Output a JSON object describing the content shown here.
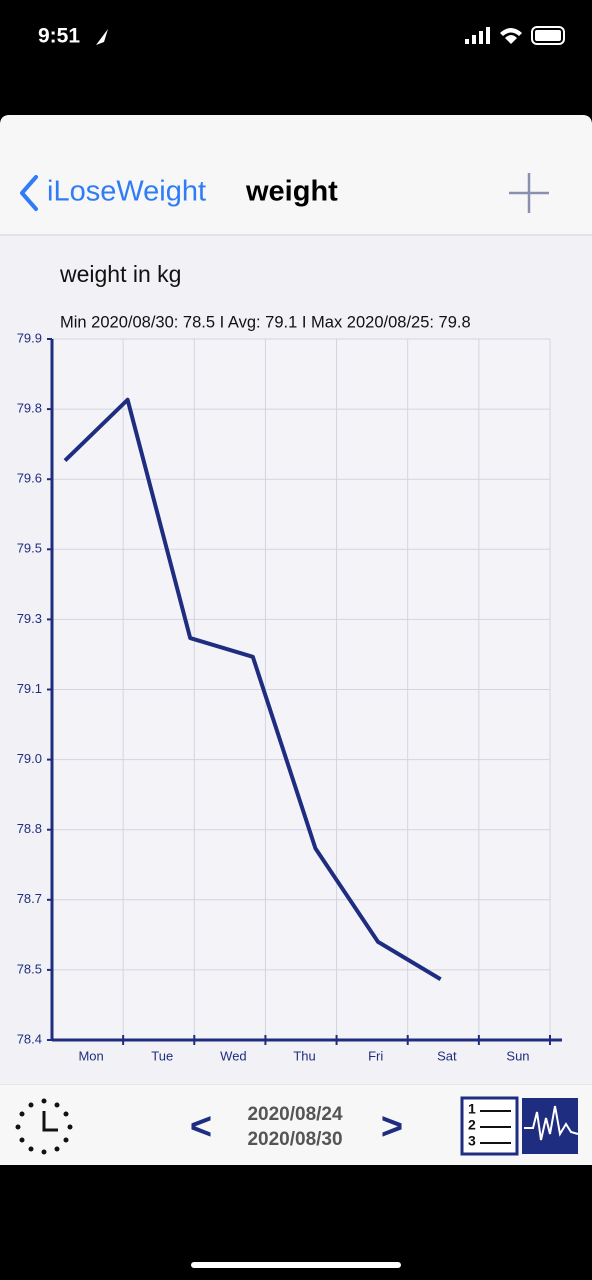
{
  "status_bar": {
    "time": "9:51"
  },
  "nav": {
    "back": "iLoseWeight",
    "title": "weight"
  },
  "chart_data": {
    "type": "line",
    "title": "weight in kg",
    "subtitle": "Min 2020/08/30: 78.5  I  Avg: 79.1  I  Max 2020/08/25: 79.8",
    "categories": [
      "Mon",
      "Tue",
      "Wed",
      "Thu",
      "Fri",
      "Sat",
      "Sun"
    ],
    "series": [
      {
        "color": "#1f2d80",
        "values": [
          79.64,
          79.77,
          79.26,
          79.22,
          78.81,
          78.61,
          78.53
        ]
      }
    ],
    "ylim": [
      78.4,
      79.9
    ],
    "yticks": [
      {
        "value": 78.4,
        "label": "78.4"
      },
      {
        "value": 78.55,
        "label": "78.5"
      },
      {
        "value": 78.7,
        "label": "78.7"
      },
      {
        "value": 78.85,
        "label": "78.8"
      },
      {
        "value": 79.0,
        "label": "79.0"
      },
      {
        "value": 79.15,
        "label": "79.1"
      },
      {
        "value": 79.3,
        "label": "79.3"
      },
      {
        "value": 79.45,
        "label": "79.5"
      },
      {
        "value": 79.6,
        "label": "79.6"
      },
      {
        "value": 79.75,
        "label": "79.8"
      },
      {
        "value": 79.9,
        "label": "79.9"
      }
    ],
    "grid": true
  },
  "footer": {
    "prev": "<",
    "start_date": "2020/08/24",
    "end_date": "2020/08/30",
    "next": ">"
  }
}
